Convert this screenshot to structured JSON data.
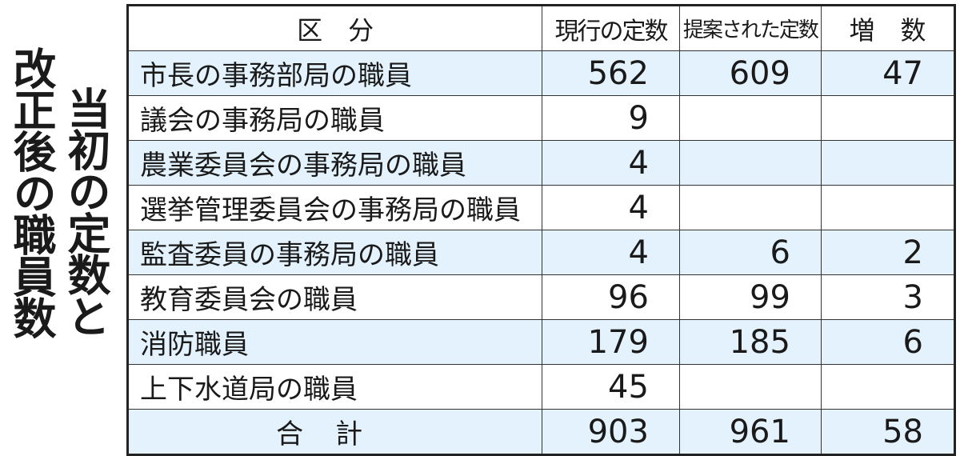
{
  "title": {
    "line1": "当初の定数と",
    "line2": "改正後の職員数"
  },
  "table": {
    "headers": [
      "区　分",
      "現行の定数",
      "提案された定数",
      "増　数"
    ],
    "rows": [
      {
        "label": "市長の事務部局の職員",
        "current": "562",
        "proposed": "609",
        "increase": "47"
      },
      {
        "label": "議会の事務局の職員",
        "current": "9",
        "proposed": "",
        "increase": ""
      },
      {
        "label": "農業委員会の事務局の職員",
        "current": "4",
        "proposed": "",
        "increase": ""
      },
      {
        "label": "選挙管理委員会の事務局の職員",
        "current": "4",
        "proposed": "",
        "increase": ""
      },
      {
        "label": "監査委員の事務局の職員",
        "current": "4",
        "proposed": "6",
        "increase": "2"
      },
      {
        "label": "教育委員会の職員",
        "current": "96",
        "proposed": "99",
        "increase": "3"
      },
      {
        "label": "消防職員",
        "current": "179",
        "proposed": "185",
        "increase": "6"
      },
      {
        "label": "上下水道局の職員",
        "current": "45",
        "proposed": "",
        "increase": ""
      }
    ],
    "total": {
      "label": "合計",
      "current": "903",
      "proposed": "961",
      "increase": "58"
    }
  },
  "colors": {
    "row_highlight": "#e3f2fc",
    "border": "#222222"
  }
}
